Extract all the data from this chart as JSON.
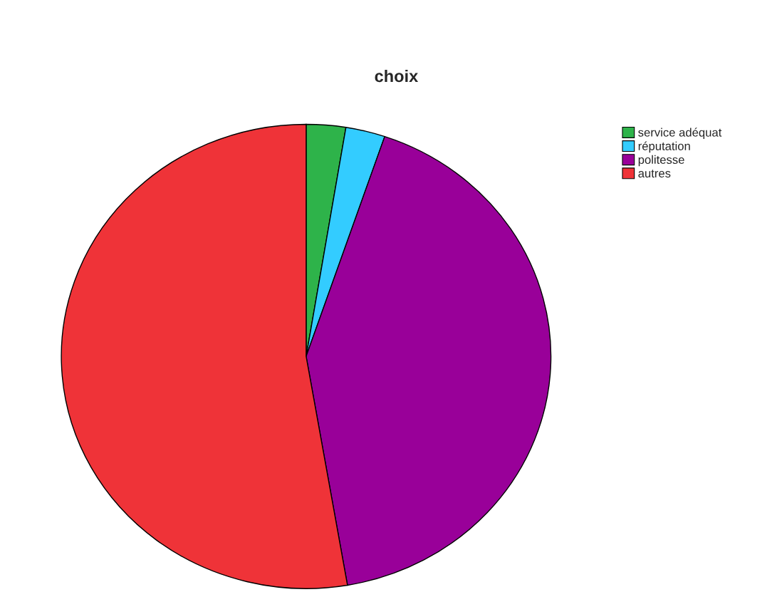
{
  "chart_data": {
    "type": "pie",
    "title": "choix",
    "categories": [
      "service adéquat",
      "réputation",
      "politesse",
      "autres"
    ],
    "values": [
      2.6,
      2.6,
      42.1,
      52.7
    ],
    "colors": [
      "#2eb34a",
      "#33ccff",
      "#990099",
      "#ef3338"
    ],
    "legend": "top right"
  }
}
